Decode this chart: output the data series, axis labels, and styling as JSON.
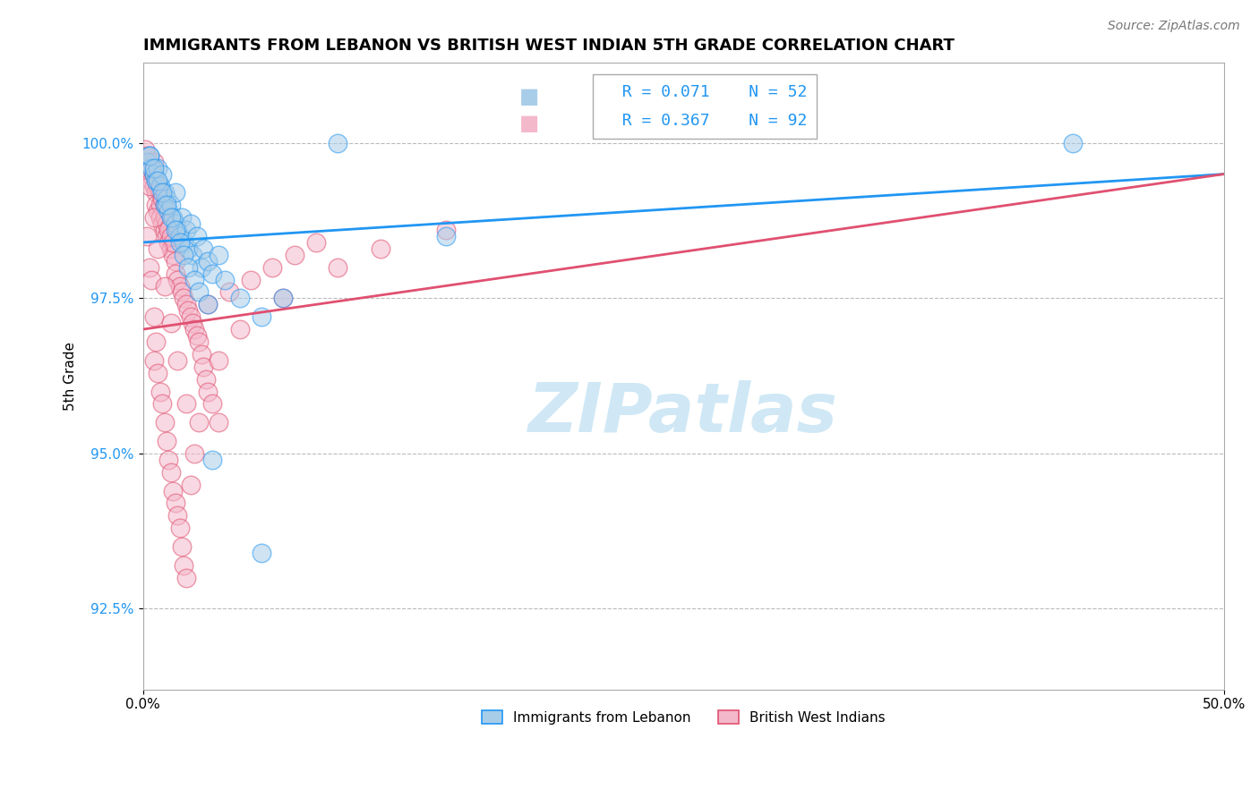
{
  "title": "IMMIGRANTS FROM LEBANON VS BRITISH WEST INDIAN 5TH GRADE CORRELATION CHART",
  "source_text": "Source: ZipAtlas.com",
  "ylabel": "5th Grade",
  "xlim": [
    0.0,
    50.0
  ],
  "ylim": [
    91.2,
    101.3
  ],
  "yticks": [
    92.5,
    95.0,
    97.5,
    100.0
  ],
  "ytick_labels": [
    "92.5%",
    "95.0%",
    "97.5%",
    "100.0%"
  ],
  "xticks": [
    0.0,
    50.0
  ],
  "xtick_labels": [
    "0.0%",
    "50.0%"
  ],
  "legend_r1": "R = 0.071",
  "legend_n1": "N = 52",
  "legend_r2": "R = 0.367",
  "legend_n2": "N = 92",
  "legend_label1": "Immigrants from Lebanon",
  "legend_label2": "British West Indians",
  "blue_color": "#a8cde8",
  "pink_color": "#f4b8cb",
  "trend_blue": "#2196F3",
  "trend_pink": "#e05070",
  "background_color": "#ffffff",
  "grid_color": "#bbbbbb",
  "title_fontsize": 13,
  "axis_label_fontsize": 11,
  "tick_fontsize": 11,
  "watermark_color": "#d0e8f5",
  "watermark_fontsize": 55
}
